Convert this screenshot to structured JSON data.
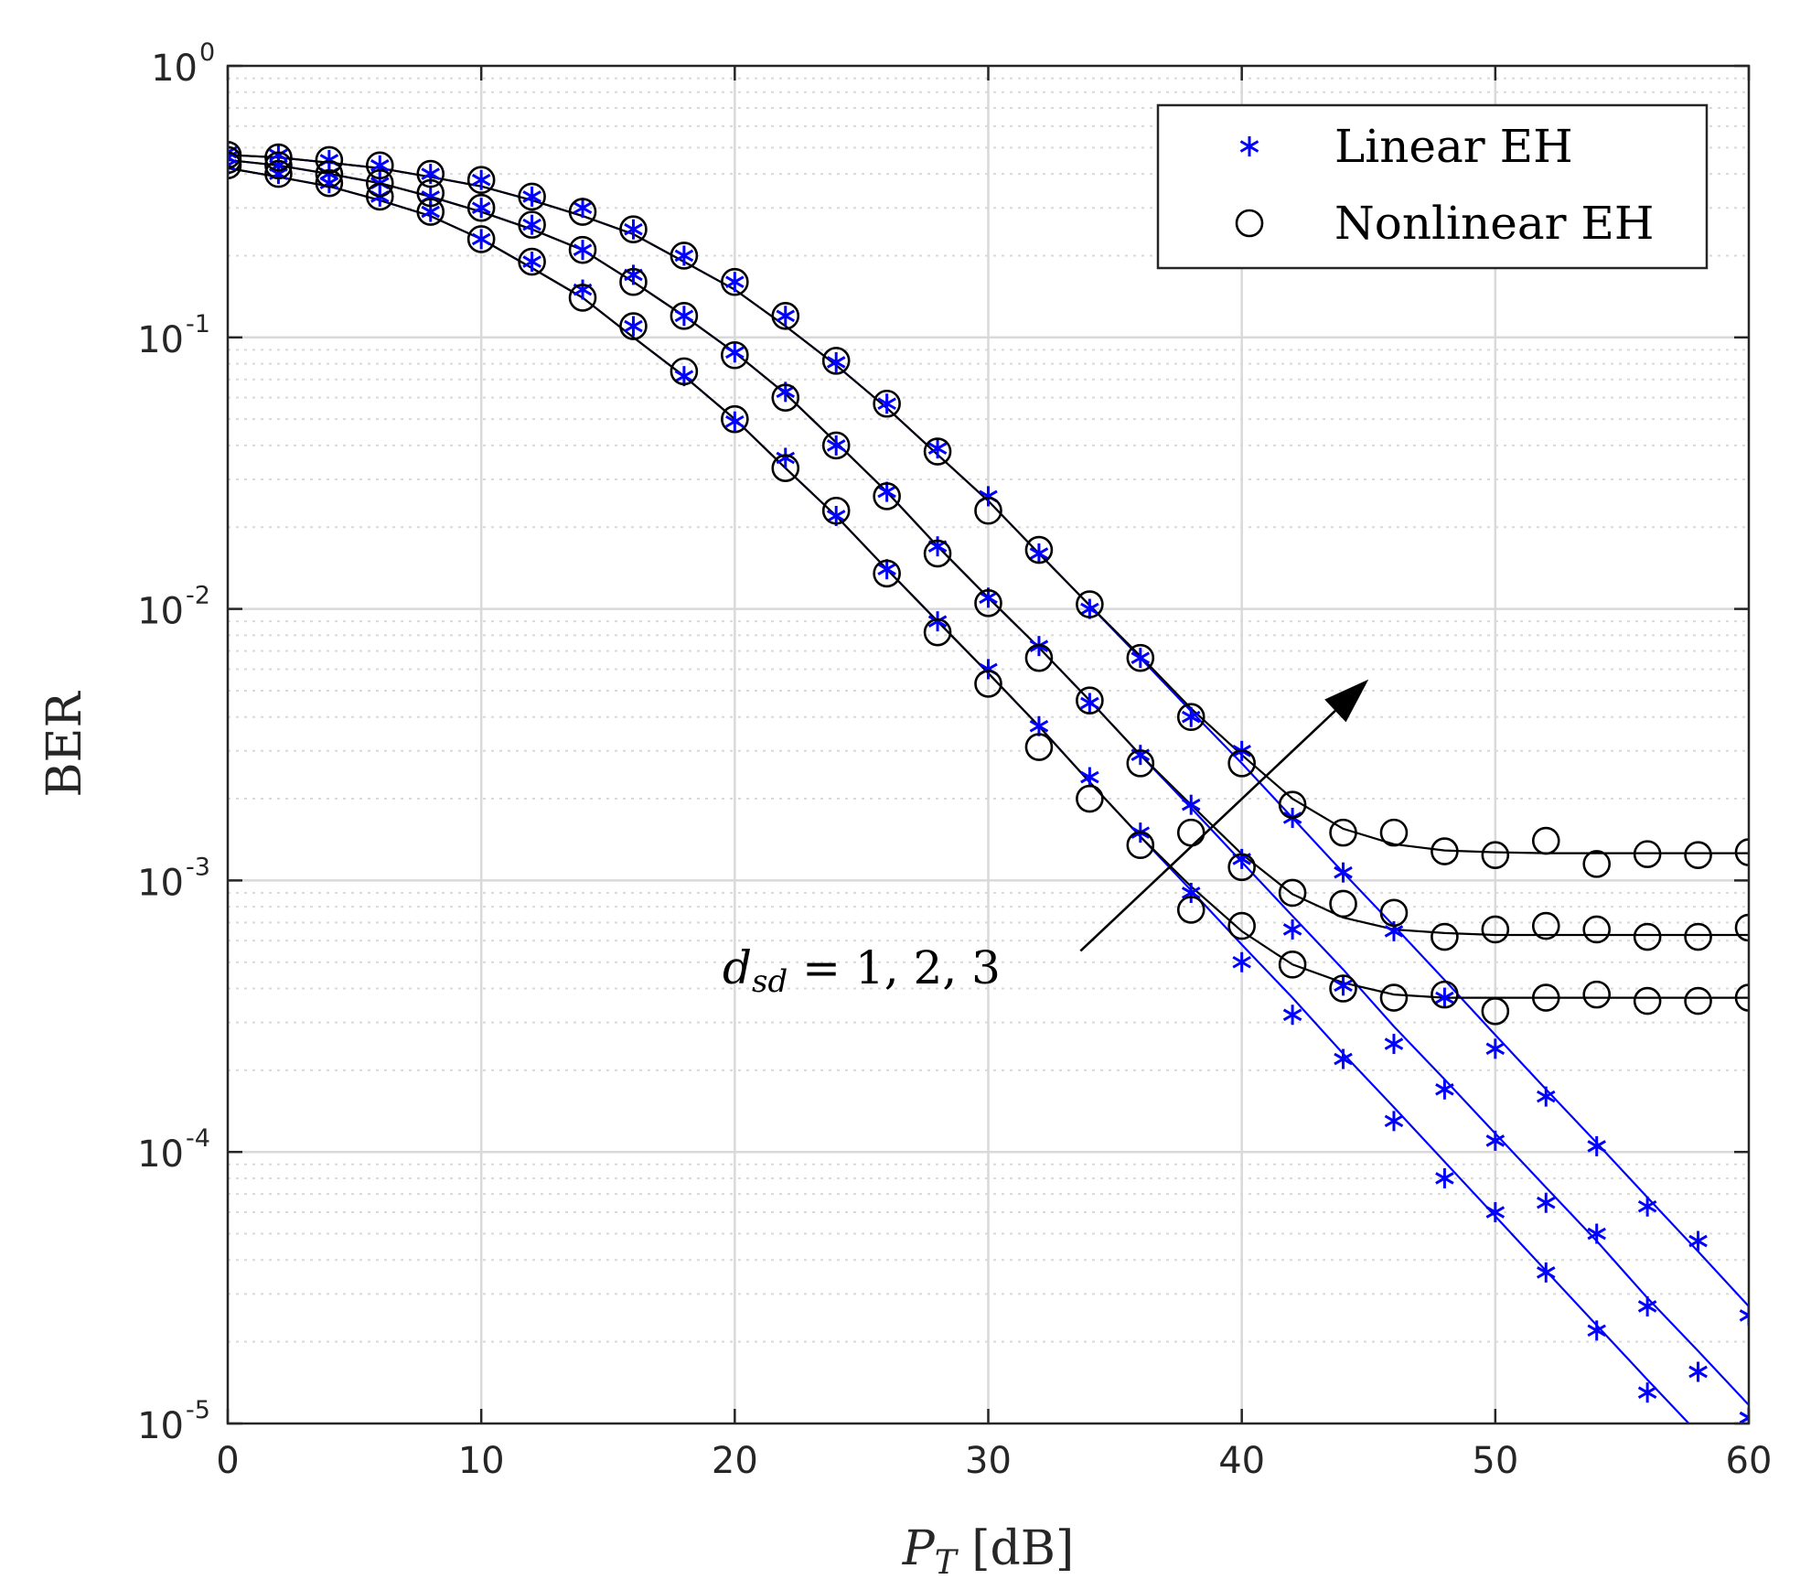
{
  "chart_data": {
    "type": "line",
    "title": "",
    "xlabel": "P_T [dB]",
    "ylabel": "BER",
    "yscale": "log",
    "xlim": [
      0,
      60
    ],
    "ylim": [
      1e-05,
      1
    ],
    "x_ticks": [
      0,
      10,
      20,
      30,
      40,
      50,
      60
    ],
    "x_tick_labels": [
      "0",
      "10",
      "20",
      "30",
      "40",
      "50",
      "60"
    ],
    "y_ticks": [
      1,
      0.1,
      0.01,
      0.001,
      0.0001,
      1e-05
    ],
    "y_tick_labels": [
      {
        "base": "10",
        "exp": "0"
      },
      {
        "base": "10",
        "exp": "-1"
      },
      {
        "base": "10",
        "exp": "-2"
      },
      {
        "base": "10",
        "exp": "-3"
      },
      {
        "base": "10",
        "exp": "-4"
      },
      {
        "base": "10",
        "exp": "-5"
      }
    ],
    "grid": true,
    "x_label_parts": {
      "main": "P",
      "sub": "T",
      "unit": " [dB]"
    },
    "legend": {
      "position": "top-right",
      "entries": [
        {
          "label": "Linear EH",
          "marker": "asterisk",
          "color": "#0000ff"
        },
        {
          "label": "Nonlinear EH",
          "marker": "circle",
          "color": "#000000"
        }
      ]
    },
    "annotation": {
      "text": "d_sd = 1, 2, 3",
      "var": "d",
      "sub": "sd",
      "rest": " = 1, 2, 3",
      "arrow_from": [
        34,
        0.00075
      ],
      "arrow_to": [
        45,
        0.0055
      ]
    },
    "colors": {
      "linear": "#0000ff",
      "nonlinear": "#000000",
      "grid": "#d9d9d9",
      "axis": "#262626"
    },
    "x": [
      0,
      2,
      4,
      6,
      8,
      10,
      12,
      14,
      16,
      18,
      20,
      22,
      24,
      26,
      28,
      30,
      32,
      34,
      36,
      38,
      40,
      42,
      44,
      46,
      48,
      50,
      52,
      54,
      56,
      58,
      60
    ],
    "series": [
      {
        "name": "Linear EH, d_sd=1 (sim)",
        "kind": "markers",
        "marker": "asterisk",
        "color": "#0000ff",
        "y": [
          0.43,
          0.4,
          0.37,
          0.33,
          0.29,
          0.23,
          0.19,
          0.15,
          0.11,
          0.072,
          0.049,
          0.036,
          0.022,
          0.014,
          0.009,
          0.006,
          0.0037,
          0.0024,
          0.0015,
          0.0009,
          0.0005,
          0.00032,
          0.00022,
          0.00013,
          8e-05,
          6e-05,
          3.6e-05,
          2.2e-05,
          1.3e-05,
          1.55e-05,
          1.05e-05
        ]
      },
      {
        "name": "Linear EH, d_sd=2 (sim)",
        "kind": "markers",
        "marker": "asterisk",
        "color": "#0000ff",
        "y": [
          0.46,
          0.43,
          0.4,
          0.37,
          0.33,
          0.3,
          0.26,
          0.21,
          0.17,
          0.12,
          0.088,
          0.063,
          0.04,
          0.027,
          0.017,
          0.011,
          0.0073,
          0.0045,
          0.0029,
          0.0019,
          0.0012,
          0.00066,
          0.00041,
          0.00025,
          0.00017,
          0.00011,
          6.5e-05,
          5e-05,
          2.7e-05,
          1.55e-05,
          1.05e-05
        ]
      },
      {
        "name": "Linear EH, d_sd=3 (sim)",
        "kind": "markers",
        "marker": "asterisk",
        "color": "#0000ff",
        "y": [
          0.48,
          0.47,
          0.45,
          0.43,
          0.4,
          0.38,
          0.33,
          0.3,
          0.25,
          0.2,
          0.16,
          0.12,
          0.081,
          0.057,
          0.039,
          0.026,
          0.016,
          0.01,
          0.0066,
          0.004,
          0.003,
          0.0017,
          0.00107,
          0.00065,
          0.00037,
          0.00024,
          0.00016,
          0.000105,
          6.3e-05,
          4.7e-05,
          2.5e-05
        ]
      },
      {
        "name": "Nonlinear EH, d_sd=1 (sim)",
        "kind": "markers",
        "marker": "circle",
        "color": "#000000",
        "y": [
          0.43,
          0.4,
          0.37,
          0.33,
          0.29,
          0.23,
          0.19,
          0.14,
          0.11,
          0.075,
          0.05,
          0.033,
          0.023,
          0.0135,
          0.0082,
          0.0053,
          0.0031,
          0.002,
          0.00135,
          0.00078,
          0.00068,
          0.00049,
          0.0004,
          0.00037,
          0.00038,
          0.00033,
          0.00037,
          0.00038,
          0.00036,
          0.00036,
          0.00037
        ]
      },
      {
        "name": "Nonlinear EH, d_sd=2 (sim)",
        "kind": "markers",
        "marker": "circle",
        "color": "#000000",
        "y": [
          0.45,
          0.43,
          0.4,
          0.37,
          0.34,
          0.3,
          0.26,
          0.21,
          0.16,
          0.12,
          0.086,
          0.06,
          0.04,
          0.026,
          0.016,
          0.0105,
          0.0066,
          0.0046,
          0.0027,
          0.0015,
          0.00112,
          0.0009,
          0.00082,
          0.00076,
          0.00062,
          0.00066,
          0.00068,
          0.00066,
          0.00062,
          0.00062,
          0.00067
        ]
      },
      {
        "name": "Nonlinear EH, d_sd=3 (sim)",
        "kind": "markers",
        "marker": "circle",
        "color": "#000000",
        "y": [
          0.47,
          0.46,
          0.45,
          0.43,
          0.4,
          0.38,
          0.33,
          0.29,
          0.25,
          0.2,
          0.16,
          0.12,
          0.082,
          0.057,
          0.038,
          0.023,
          0.0165,
          0.0104,
          0.0066,
          0.004,
          0.0027,
          0.0019,
          0.0015,
          0.0015,
          0.00128,
          0.00124,
          0.0014,
          0.00115,
          0.00125,
          0.00124,
          0.00127
        ]
      },
      {
        "name": "Linear EH, d_sd=1 (analysis)",
        "kind": "line",
        "color": "#0000ff",
        "y": [
          0.42,
          0.39,
          0.36,
          0.32,
          0.28,
          0.23,
          0.18,
          0.14,
          0.1,
          0.072,
          0.05,
          0.033,
          0.022,
          0.014,
          0.009,
          0.0058,
          0.0037,
          0.0023,
          0.00145,
          0.00092,
          0.00058,
          0.00037,
          0.00023,
          0.000146,
          9.2e-05,
          5.8e-05,
          3.65e-05,
          2.3e-05,
          1.45e-05,
          9.2e-06,
          5.8e-06
        ]
      },
      {
        "name": "Linear EH, d_sd=2 (analysis)",
        "kind": "line",
        "color": "#0000ff",
        "y": [
          0.45,
          0.43,
          0.4,
          0.37,
          0.33,
          0.29,
          0.25,
          0.21,
          0.16,
          0.12,
          0.088,
          0.062,
          0.041,
          0.027,
          0.017,
          0.011,
          0.0072,
          0.0046,
          0.0029,
          0.00185,
          0.00117,
          0.00074,
          0.00047,
          0.00029,
          0.000185,
          0.000117,
          7.4e-05,
          4.7e-05,
          2.9e-05,
          1.85e-05,
          1.17e-05
        ]
      },
      {
        "name": "Linear EH, d_sd=3 (analysis)",
        "kind": "line",
        "color": "#0000ff",
        "y": [
          0.47,
          0.46,
          0.44,
          0.42,
          0.39,
          0.36,
          0.32,
          0.28,
          0.24,
          0.19,
          0.15,
          0.11,
          0.079,
          0.055,
          0.037,
          0.025,
          0.016,
          0.0103,
          0.0066,
          0.0042,
          0.0027,
          0.0017,
          0.00107,
          0.00068,
          0.00043,
          0.00027,
          0.00017,
          0.000108,
          6.8e-05,
          4.3e-05,
          2.7e-05
        ]
      },
      {
        "name": "Nonlinear EH, d_sd=1 (analysis)",
        "kind": "line",
        "color": "#000000",
        "y": [
          0.42,
          0.39,
          0.36,
          0.32,
          0.28,
          0.23,
          0.18,
          0.14,
          0.1,
          0.072,
          0.05,
          0.033,
          0.022,
          0.014,
          0.009,
          0.0058,
          0.0037,
          0.0023,
          0.00145,
          0.00095,
          0.00065,
          0.00049,
          0.00042,
          0.00038,
          0.00037,
          0.00037,
          0.00037,
          0.00037,
          0.00037,
          0.00037,
          0.00037
        ]
      },
      {
        "name": "Nonlinear EH, d_sd=2 (analysis)",
        "kind": "line",
        "color": "#000000",
        "y": [
          0.45,
          0.43,
          0.4,
          0.37,
          0.33,
          0.29,
          0.25,
          0.21,
          0.16,
          0.12,
          0.088,
          0.062,
          0.041,
          0.027,
          0.017,
          0.011,
          0.0072,
          0.0046,
          0.0029,
          0.0019,
          0.00125,
          0.00089,
          0.00073,
          0.00066,
          0.00064,
          0.00063,
          0.00063,
          0.00063,
          0.00063,
          0.00063,
          0.00063
        ]
      },
      {
        "name": "Nonlinear EH, d_sd=3 (analysis)",
        "kind": "line",
        "color": "#000000",
        "y": [
          0.47,
          0.46,
          0.44,
          0.42,
          0.39,
          0.36,
          0.32,
          0.28,
          0.24,
          0.19,
          0.15,
          0.11,
          0.079,
          0.055,
          0.037,
          0.025,
          0.016,
          0.0103,
          0.0067,
          0.0043,
          0.0029,
          0.002,
          0.00155,
          0.00136,
          0.00129,
          0.00127,
          0.00126,
          0.00126,
          0.00126,
          0.00126,
          0.00126
        ]
      }
    ]
  }
}
